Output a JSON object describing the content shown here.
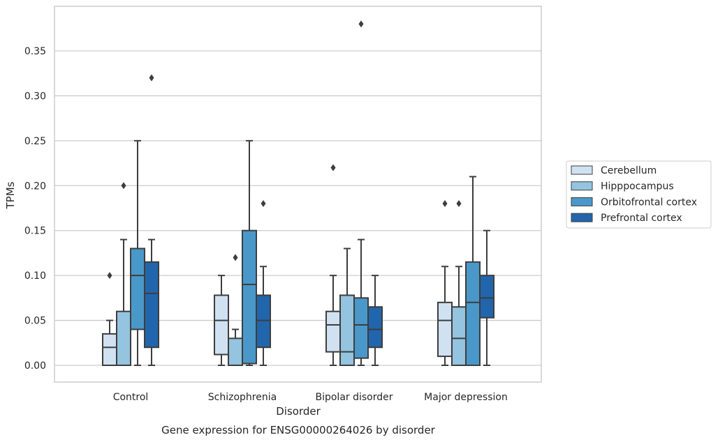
{
  "chart_data": {
    "type": "boxplot",
    "title": "",
    "caption": "Gene expression for ENSG00000264026 by disorder",
    "xlabel": "Disorder",
    "ylabel": "TPMs",
    "ylim": [
      -0.018,
      0.398
    ],
    "yticks": [
      0.0,
      0.05,
      0.1,
      0.15,
      0.2,
      0.25,
      0.3,
      0.35
    ],
    "ytick_labels": [
      "0.00",
      "0.05",
      "0.10",
      "0.15",
      "0.20",
      "0.25",
      "0.30",
      "0.35"
    ],
    "grid": "y",
    "legend_position": "right",
    "categories": [
      "Control",
      "Schizophrenia",
      "Bipolar disorder",
      "Major depression"
    ],
    "series": [
      {
        "name": "Cerebellum",
        "color": "#d0e1f2",
        "boxes": [
          {
            "whislo": 0.0,
            "q1": 0.0,
            "med": 0.02,
            "q3": 0.035,
            "whishi": 0.05,
            "fliers": [
              0.1
            ]
          },
          {
            "whislo": 0.0,
            "q1": 0.012,
            "med": 0.05,
            "q3": 0.078,
            "whishi": 0.1,
            "fliers": []
          },
          {
            "whislo": 0.0,
            "q1": 0.015,
            "med": 0.045,
            "q3": 0.06,
            "whishi": 0.1,
            "fliers": [
              0.22
            ]
          },
          {
            "whislo": 0.0,
            "q1": 0.01,
            "med": 0.05,
            "q3": 0.07,
            "whishi": 0.11,
            "fliers": [
              0.18
            ]
          }
        ]
      },
      {
        "name": "Hipppocampus",
        "color": "#94c4df",
        "boxes": [
          {
            "whislo": 0.0,
            "q1": 0.0,
            "med": 0.0,
            "q3": 0.06,
            "whishi": 0.14,
            "fliers": [
              0.2
            ]
          },
          {
            "whislo": 0.0,
            "q1": 0.0,
            "med": 0.0,
            "q3": 0.03,
            "whishi": 0.04,
            "fliers": [
              0.12
            ]
          },
          {
            "whislo": 0.0,
            "q1": 0.0,
            "med": 0.015,
            "q3": 0.078,
            "whishi": 0.13,
            "fliers": []
          },
          {
            "whislo": 0.0,
            "q1": 0.0,
            "med": 0.03,
            "q3": 0.065,
            "whishi": 0.11,
            "fliers": [
              0.18
            ]
          }
        ]
      },
      {
        "name": "Orbitofrontal cortex",
        "color": "#4a98c9",
        "boxes": [
          {
            "whislo": 0.0,
            "q1": 0.04,
            "med": 0.1,
            "q3": 0.13,
            "whishi": 0.25,
            "fliers": []
          },
          {
            "whislo": 0.0,
            "q1": 0.002,
            "med": 0.09,
            "q3": 0.15,
            "whishi": 0.25,
            "fliers": []
          },
          {
            "whislo": 0.0,
            "q1": 0.008,
            "med": 0.045,
            "q3": 0.075,
            "whishi": 0.14,
            "fliers": [
              0.38
            ]
          },
          {
            "whislo": 0.0,
            "q1": 0.0,
            "med": 0.07,
            "q3": 0.115,
            "whishi": 0.21,
            "fliers": []
          }
        ]
      },
      {
        "name": "Prefrontal cortex",
        "color": "#2166ac",
        "boxes": [
          {
            "whislo": 0.0,
            "q1": 0.02,
            "med": 0.08,
            "q3": 0.115,
            "whishi": 0.14,
            "fliers": [
              0.32
            ]
          },
          {
            "whislo": 0.0,
            "q1": 0.02,
            "med": 0.05,
            "q3": 0.078,
            "whishi": 0.11,
            "fliers": [
              0.18
            ]
          },
          {
            "whislo": 0.0,
            "q1": 0.02,
            "med": 0.04,
            "q3": 0.065,
            "whishi": 0.1,
            "fliers": []
          },
          {
            "whislo": 0.0,
            "q1": 0.053,
            "med": 0.075,
            "q3": 0.1,
            "whishi": 0.15,
            "fliers": []
          }
        ]
      }
    ]
  }
}
